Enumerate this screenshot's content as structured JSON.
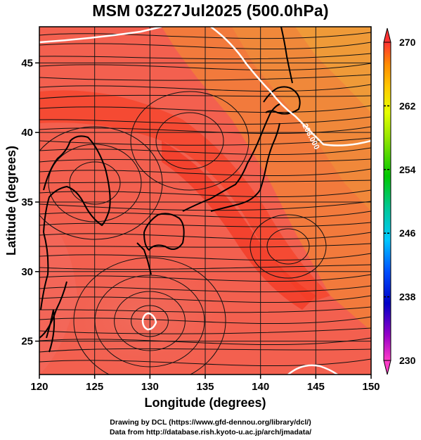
{
  "title": "MSM 03Z27Jul2025 (500.0hPa)",
  "credits": {
    "line1": "Drawing by DCL (https://www.gfd-dennou.org/library/dcl/)",
    "line2": "Data from http://database.rish.kyoto-u.ac.jp/arch/jmadata/"
  },
  "chart_data": {
    "type": "heatmap",
    "title": "MSM 03Z27Jul2025 (500.0hPa)",
    "xlabel": "Longitude (degrees)",
    "ylabel": "Latitude  (degrees)",
    "xlim": [
      120,
      150
    ],
    "ylim": [
      22.6,
      47.6
    ],
    "x_ticks": [
      120,
      125,
      130,
      135,
      140,
      145,
      150
    ],
    "y_ticks": [
      25,
      30,
      35,
      40,
      45
    ],
    "grid": true,
    "overlays": [
      "streamlines (wind)",
      "coastlines",
      "white contour"
    ],
    "contour_label": "268.000",
    "colorbar": {
      "min": 230,
      "max": 270,
      "labels": [
        230,
        238,
        246,
        254,
        262,
        270
      ],
      "colors": [
        "#ff3cc8",
        "#0000c8",
        "#00c8ff",
        "#00c800",
        "#c8ff00",
        "#ff3232"
      ]
    }
  }
}
